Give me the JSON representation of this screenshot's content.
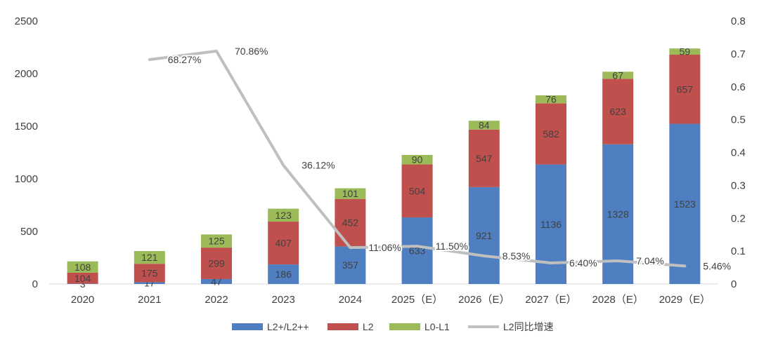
{
  "chart_data": {
    "type": "bar",
    "stacked": true,
    "secondary_axis": true,
    "categories": [
      "2020",
      "2021",
      "2022",
      "2023",
      "2024",
      "2025（E）",
      "2026（E）",
      "2027（E）",
      "2028（E）",
      "2029（E）"
    ],
    "series": [
      {
        "name": "L2+/L2++",
        "color": "#4f7fc0",
        "values": [
          3,
          17,
          47,
          186,
          357,
          633,
          921,
          1136,
          1328,
          1523
        ]
      },
      {
        "name": "L2",
        "color": "#c0504d",
        "values": [
          104,
          175,
          299,
          407,
          452,
          504,
          547,
          582,
          623,
          657
        ]
      },
      {
        "name": "L0-L1",
        "color": "#9bbb59",
        "values": [
          108,
          121,
          125,
          123,
          101,
          90,
          84,
          76,
          67,
          59
        ]
      }
    ],
    "line_series": {
      "name": "L2同比增速",
      "color": "#bfbfbf",
      "values": [
        null,
        0.6827,
        0.7086,
        0.3612,
        0.1106,
        0.115,
        0.0853,
        0.064,
        0.0704,
        0.0546
      ],
      "labels": [
        null,
        "68.27%",
        "70.86%",
        "36.12%",
        "11.06%",
        "11.50%",
        "8.53%",
        "6.40%",
        "7.04%",
        "5.46%"
      ]
    },
    "ylim": [
      0,
      2500
    ],
    "yticks": [
      "0",
      "500",
      "1000",
      "1500",
      "2000",
      "2500"
    ],
    "y2lim": [
      0,
      0.8
    ],
    "y2ticks": [
      "0",
      "0.1",
      "0.2",
      "0.3",
      "0.4",
      "0.5",
      "0.6",
      "0.7",
      "0.8"
    ],
    "legend": [
      "L2+/L2++",
      "L2",
      "L0-L1",
      "L2同比增速"
    ],
    "legend_position": "bottom",
    "title": "",
    "xlabel": "",
    "ylabel": ""
  }
}
